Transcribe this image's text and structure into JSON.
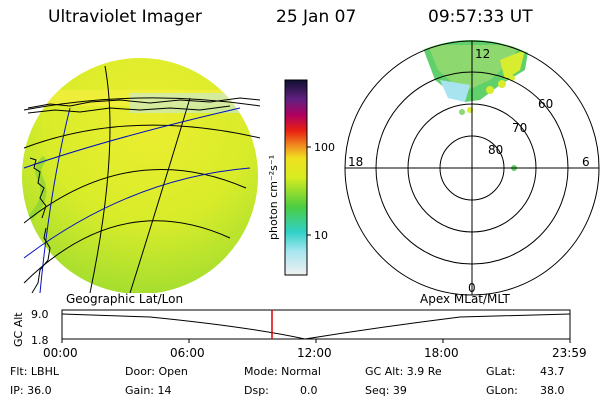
{
  "header": {
    "instrument": "Ultraviolet Imager",
    "date": "25 Jan 07",
    "time": "09:57:33 UT"
  },
  "colorbar": {
    "unit_label": "photon cm⁻²s⁻¹",
    "ticks": [
      "100",
      "10"
    ]
  },
  "polar_plot": {
    "mlt_labels": {
      "top": "12",
      "left": "18",
      "right": "6",
      "bottom": "0"
    },
    "lat_labels": [
      "60",
      "70",
      "80"
    ]
  },
  "altitude_panel": {
    "ylabel": "GC Alt",
    "yticks": [
      "9.0",
      "1.8"
    ],
    "left_caption": "Geographic Lat/Lon",
    "right_caption": "Apex MLat/MLT",
    "time_ticks": [
      "00:00",
      "06:00",
      "12:00",
      "18:00",
      "23:59"
    ]
  },
  "info": {
    "filter": "Flt: LBHL",
    "ip": "IP: 36.0",
    "door": "Door: Open",
    "gain": "Gain: 14",
    "mode": "Mode: Normal",
    "dsp_label": "Dsp:",
    "dsp_value": "0.0",
    "gc_alt": "GC Alt: 3.9 Re",
    "seq": "Seq: 39",
    "glat_label": "GLat:",
    "glat_value": "43.7",
    "glon_label": "GLon:",
    "glon_value": "38.0"
  }
}
